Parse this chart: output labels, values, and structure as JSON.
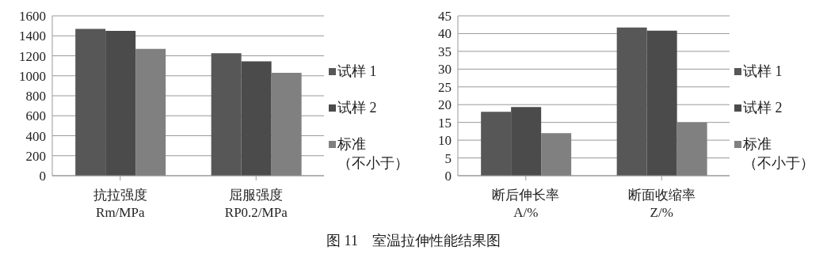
{
  "chart_data": [
    {
      "type": "bar",
      "categories": [
        "抗拉强度\nRm/MPa",
        "屈服强度\nRP0.2/MPa"
      ],
      "series": [
        {
          "name": "试样 1",
          "color": "#575757",
          "values": [
            1470,
            1225
          ]
        },
        {
          "name": "试样 2",
          "color": "#4b4b4b",
          "values": [
            1450,
            1145
          ]
        },
        {
          "name": "标准（不小于）",
          "color": "#808080",
          "values": [
            1270,
            1030
          ]
        }
      ],
      "ylim": [
        0,
        1600
      ],
      "yticks": [
        0,
        200,
        400,
        600,
        800,
        1000,
        1200,
        1400,
        1600
      ],
      "grid": "y",
      "legend": "right",
      "annotations": [
        "图 11　室温拉伸性能结果图"
      ]
    },
    {
      "type": "bar",
      "categories": [
        "断后伸长率\nA/%",
        "断面收缩率\nZ/%"
      ],
      "series": [
        {
          "name": "试样 1",
          "color": "#575757",
          "values": [
            18,
            41.7
          ]
        },
        {
          "name": "试样 2",
          "color": "#4b4b4b",
          "values": [
            19.3,
            40.8
          ]
        },
        {
          "name": "标准（不小于）",
          "color": "#808080",
          "values": [
            12,
            15
          ]
        }
      ],
      "ylim": [
        0,
        45
      ],
      "yticks": [
        0,
        5,
        10,
        15,
        20,
        25,
        30,
        35,
        40,
        45
      ],
      "grid": "y",
      "legend": "right"
    }
  ]
}
